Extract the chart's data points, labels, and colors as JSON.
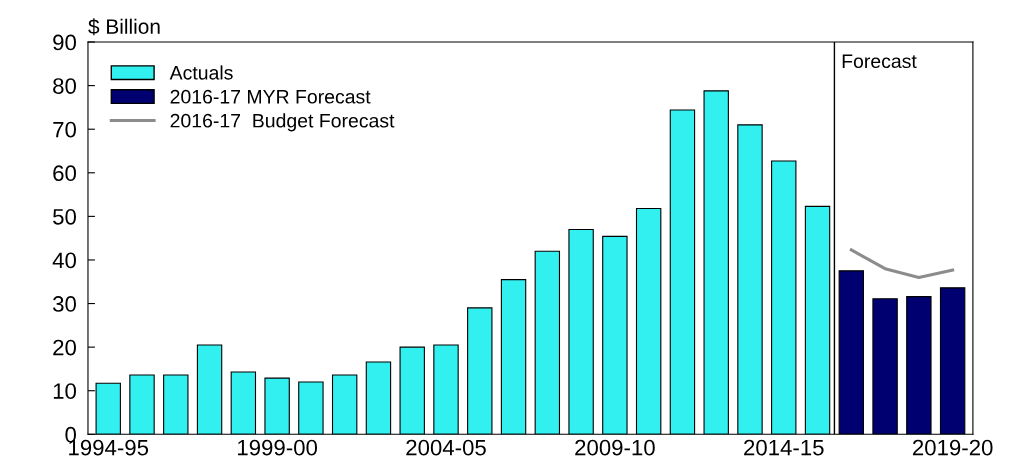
{
  "chart_data": {
    "type": "bar",
    "ylabel": "$ Billion",
    "categories": [
      "1994-95",
      null,
      null,
      null,
      null,
      "1999-00",
      null,
      null,
      null,
      null,
      "2004-05",
      null,
      null,
      null,
      null,
      "2009-10",
      null,
      null,
      null,
      null,
      "2014-15",
      null,
      null,
      null,
      null,
      "2019-20"
    ],
    "series": [
      {
        "name": "Actuals",
        "color": "#33f0f0",
        "values": [
          11.7,
          13.6,
          13.6,
          20.5,
          14.3,
          12.9,
          12.0,
          13.6,
          16.6,
          20.0,
          20.5,
          29.0,
          35.5,
          42.0,
          47.0,
          45.4,
          51.8,
          74.4,
          78.8,
          71.0,
          62.7,
          52.3,
          null,
          null,
          null,
          null
        ]
      },
      {
        "name": "2016-17 MYR Forecast",
        "color": "#000070",
        "values": [
          null,
          null,
          null,
          null,
          null,
          null,
          null,
          null,
          null,
          null,
          null,
          null,
          null,
          null,
          null,
          null,
          null,
          null,
          null,
          null,
          null,
          null,
          37.5,
          31.1,
          31.6,
          33.6
        ]
      },
      {
        "name": "2016-17  Budget Forecast",
        "type": "line",
        "color": "#8c8c8c",
        "values": [
          null,
          null,
          null,
          null,
          null,
          null,
          null,
          null,
          null,
          null,
          null,
          null,
          null,
          null,
          null,
          null,
          null,
          null,
          null,
          null,
          null,
          null,
          42.3,
          38.0,
          36.0,
          37.7
        ]
      }
    ],
    "ylim": [
      0,
      90
    ],
    "yticks": [
      0,
      10,
      20,
      30,
      40,
      50,
      60,
      70,
      80,
      90
    ],
    "annotations": [
      "Forecast"
    ],
    "grid": false,
    "legend": "top left",
    "marker": "none",
    "line_style": "solid"
  }
}
